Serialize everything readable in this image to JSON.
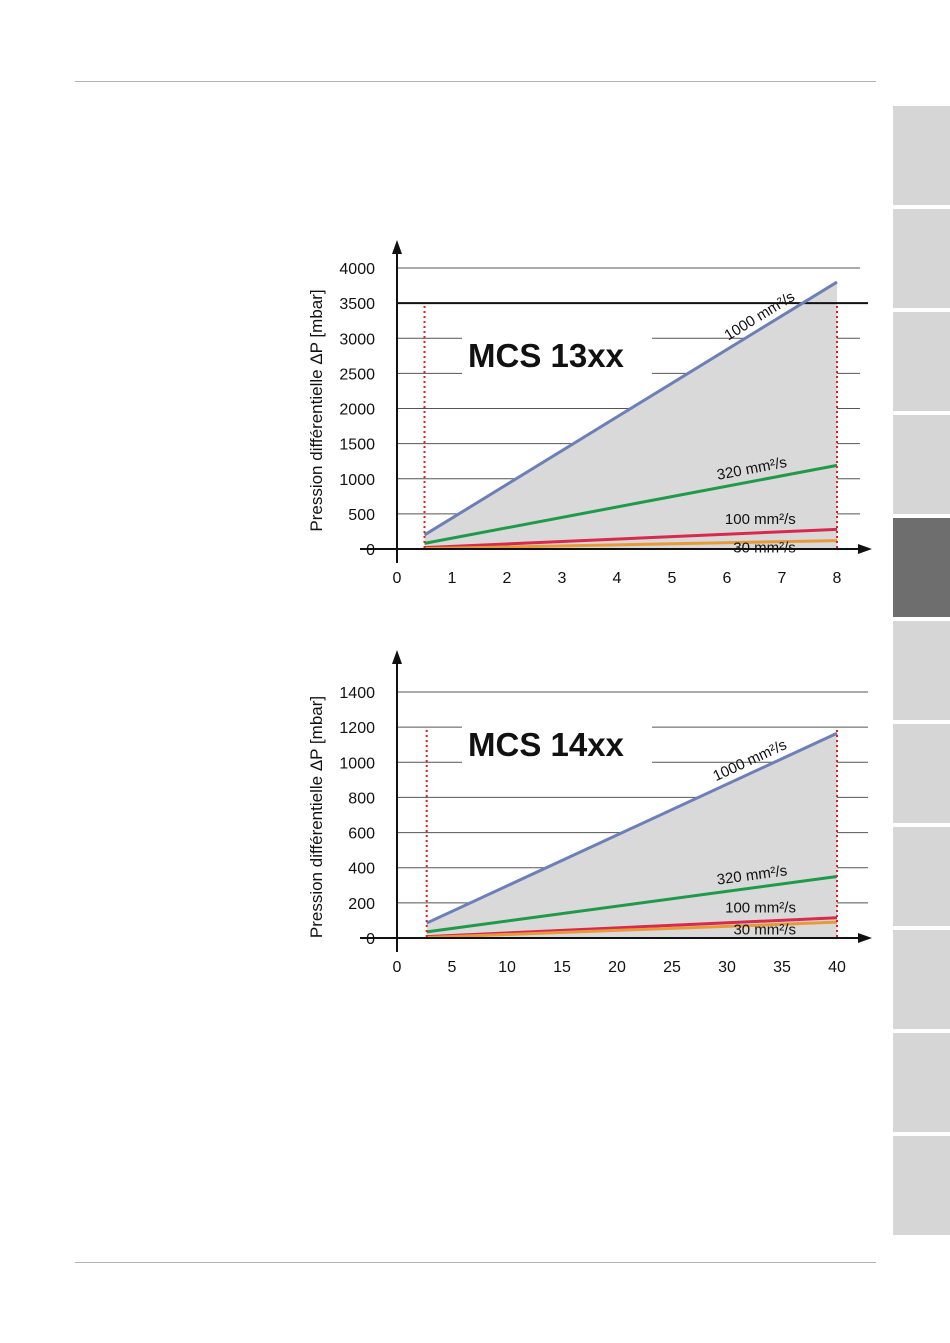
{
  "colors": {
    "visc_1000": "#6b7fb8",
    "visc_320": "#1f9a4a",
    "visc_100": "#d72a4c",
    "visc_30": "#e89a3a",
    "limit_line": "#e02020",
    "fill_area": "#d9d9d9",
    "tab_default": "#d6d6d6",
    "tab_active": "#6e6e6e"
  },
  "side_tabs": {
    "count": 11,
    "active_index": 4
  },
  "chart_data": [
    {
      "type": "line",
      "title": "MCS 13xx",
      "ylabel": "Pression différentielle ΔP [mbar]",
      "xlabel": "",
      "xlim": [
        0,
        8
      ],
      "ylim": [
        0,
        4000
      ],
      "x_ticks": [
        "0",
        "1",
        "2",
        "3",
        "4",
        "5",
        "6",
        "7",
        "8"
      ],
      "y_ticks": [
        "0",
        "500",
        "1000",
        "1500",
        "2000",
        "2500",
        "3000",
        "3500",
        "4000"
      ],
      "grid": true,
      "limit_hline": 3500,
      "limit_vlines": [
        0.5,
        8
      ],
      "series": [
        {
          "name": "1000 mm²/s",
          "x": [
            0.5,
            8
          ],
          "y": [
            200,
            3800
          ],
          "color_key": "visc_1000"
        },
        {
          "name": "320 mm²/s",
          "x": [
            0.5,
            8
          ],
          "y": [
            80,
            1190
          ],
          "color_key": "visc_320"
        },
        {
          "name": "100 mm²/s",
          "x": [
            0.5,
            8
          ],
          "y": [
            20,
            280
          ],
          "color_key": "visc_100"
        },
        {
          "name": "30 mm²/s",
          "x": [
            0.5,
            8
          ],
          "y": [
            5,
            120
          ],
          "color_key": "visc_30"
        }
      ]
    },
    {
      "type": "line",
      "title": "MCS 14xx",
      "ylabel": "Pression différentielle ΔP [mbar]",
      "xlabel": "",
      "xlim": [
        0,
        40
      ],
      "ylim": [
        0,
        1400
      ],
      "x_ticks": [
        "0",
        "5",
        "10",
        "15",
        "20",
        "25",
        "30",
        "35",
        "40"
      ],
      "y_ticks": [
        "0",
        "200",
        "400",
        "600",
        "800",
        "1000",
        "1200",
        "1400"
      ],
      "grid": true,
      "limit_vlines": [
        2.7,
        40
      ],
      "series": [
        {
          "name": "1000 mm²/s",
          "x": [
            2.7,
            40
          ],
          "y": [
            85,
            1165
          ],
          "color_key": "visc_1000"
        },
        {
          "name": "320 mm²/s",
          "x": [
            2.7,
            40
          ],
          "y": [
            35,
            350
          ],
          "color_key": "visc_320"
        },
        {
          "name": "100 mm²/s",
          "x": [
            2.7,
            40
          ],
          "y": [
            8,
            115
          ],
          "color_key": "visc_100"
        },
        {
          "name": "30 mm²/s",
          "x": [
            2.7,
            40
          ],
          "y": [
            3,
            90
          ],
          "color_key": "visc_30"
        }
      ]
    }
  ]
}
